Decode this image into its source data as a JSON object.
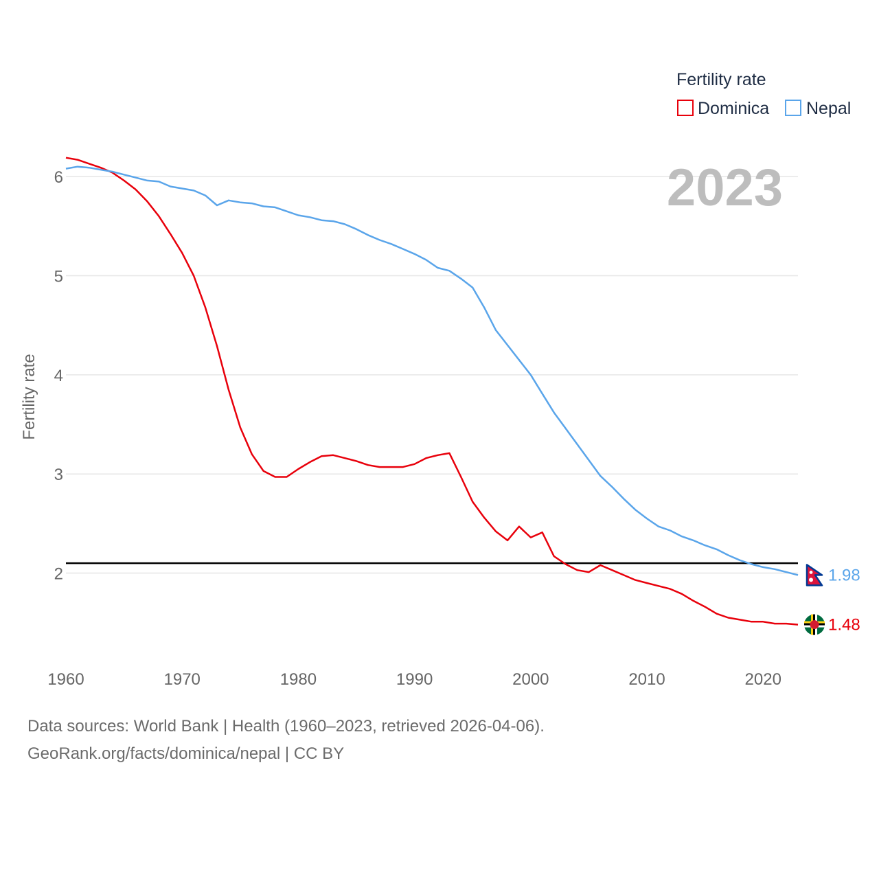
{
  "chart_data": {
    "type": "line",
    "title": "",
    "xlabel": "",
    "ylabel": "Fertility rate",
    "year_label": "2023",
    "legend_title": "Fertility rate",
    "legend_position": "top-right",
    "xlim": [
      1960,
      2023
    ],
    "ylim": [
      1.2,
      6.5
    ],
    "x_ticks": [
      1960,
      1970,
      1980,
      1990,
      2000,
      2010,
      2020
    ],
    "y_ticks": [
      2,
      3,
      4,
      5,
      6
    ],
    "reference_line": {
      "y": 2.1,
      "color": "#000000"
    },
    "x": [
      1960,
      1961,
      1962,
      1963,
      1964,
      1965,
      1966,
      1967,
      1968,
      1969,
      1970,
      1971,
      1972,
      1973,
      1974,
      1975,
      1976,
      1977,
      1978,
      1979,
      1980,
      1981,
      1982,
      1983,
      1984,
      1985,
      1986,
      1987,
      1988,
      1989,
      1990,
      1991,
      1992,
      1993,
      1994,
      1995,
      1996,
      1997,
      1998,
      1999,
      2000,
      2001,
      2002,
      2003,
      2004,
      2005,
      2006,
      2007,
      2008,
      2009,
      2010,
      2011,
      2012,
      2013,
      2014,
      2015,
      2016,
      2017,
      2018,
      2019,
      2020,
      2021,
      2022,
      2023
    ],
    "series": [
      {
        "name": "Dominica",
        "color": "#e8000b",
        "end_label": "1.48",
        "values": [
          6.19,
          6.17,
          6.13,
          6.09,
          6.04,
          5.96,
          5.87,
          5.75,
          5.6,
          5.42,
          5.23,
          5.0,
          4.68,
          4.29,
          3.85,
          3.47,
          3.2,
          3.03,
          2.97,
          2.97,
          3.05,
          3.12,
          3.18,
          3.19,
          3.16,
          3.13,
          3.09,
          3.07,
          3.07,
          3.07,
          3.1,
          3.16,
          3.19,
          3.21,
          2.97,
          2.72,
          2.56,
          2.42,
          2.33,
          2.47,
          2.36,
          2.41,
          2.17,
          2.09,
          2.03,
          2.01,
          2.08,
          2.03,
          1.98,
          1.93,
          1.9,
          1.87,
          1.84,
          1.79,
          1.72,
          1.66,
          1.59,
          1.55,
          1.53,
          1.51,
          1.51,
          1.49,
          1.49,
          1.48
        ]
      },
      {
        "name": "Nepal",
        "color": "#5aa5ea",
        "end_label": "1.98",
        "values": [
          6.08,
          6.1,
          6.09,
          6.07,
          6.05,
          6.02,
          5.99,
          5.96,
          5.95,
          5.9,
          5.88,
          5.86,
          5.81,
          5.71,
          5.76,
          5.74,
          5.73,
          5.7,
          5.69,
          5.65,
          5.61,
          5.59,
          5.56,
          5.55,
          5.52,
          5.47,
          5.41,
          5.36,
          5.32,
          5.27,
          5.22,
          5.16,
          5.08,
          5.05,
          4.97,
          4.88,
          4.68,
          4.45,
          4.3,
          4.15,
          4.0,
          3.81,
          3.62,
          3.46,
          3.3,
          3.14,
          2.98,
          2.87,
          2.75,
          2.64,
          2.55,
          2.47,
          2.43,
          2.37,
          2.33,
          2.28,
          2.24,
          2.18,
          2.13,
          2.09,
          2.06,
          2.04,
          2.01,
          1.98
        ]
      }
    ],
    "flags": {
      "Dominica": {
        "field": "#006b3f",
        "band_yellow": "#fcd116",
        "band_black": "#000000",
        "band_white": "#ffffff",
        "disc": "#d41c30"
      },
      "Nepal": {
        "red": "#dc143c",
        "border": "#003893",
        "emblem": "#ffffff"
      }
    }
  },
  "footer": {
    "source_line": "Data sources: World Bank | Health (1960–2023, retrieved 2026-04-06).",
    "credit_line": "GeoRank.org/facts/dominica/nepal | CC BY"
  }
}
